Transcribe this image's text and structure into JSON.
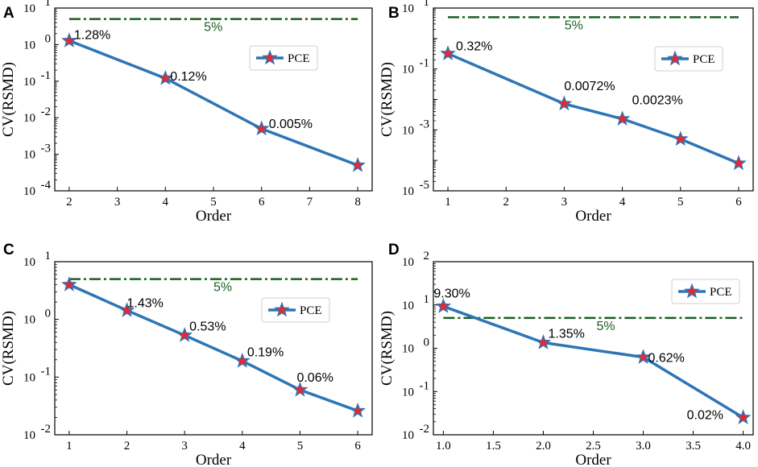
{
  "chart_data": [
    {
      "panel": "A",
      "type": "line",
      "xlabel": "Order",
      "ylabel": "CV(RSMD)",
      "yscale": "log",
      "xlim": [
        1.7,
        8.3
      ],
      "ylim_exp": [
        -4,
        1
      ],
      "xticks": [
        2,
        3,
        4,
        5,
        6,
        7,
        8
      ],
      "xtick_labels": [
        "2",
        "3",
        "4",
        "5",
        "6",
        "7",
        "8"
      ],
      "series": [
        {
          "name": "PCE",
          "x": [
            2,
            4,
            6,
            8
          ],
          "y": [
            1.28,
            0.12,
            0.005,
            0.0005
          ],
          "labels": [
            "1.28%",
            "0.12%",
            "0.005%",
            ""
          ]
        }
      ],
      "threshold": {
        "value": 5,
        "label": "5%"
      },
      "legend_position": "upper right"
    },
    {
      "panel": "B",
      "type": "line",
      "xlabel": "Order",
      "ylabel": "CV(RSMD)",
      "yscale": "log",
      "xlim": [
        0.75,
        6.25
      ],
      "ylim_exp": [
        -5,
        1
      ],
      "xticks": [
        1,
        2,
        3,
        4,
        5,
        6
      ],
      "xtick_labels": [
        "1",
        "2",
        "3",
        "4",
        "5",
        "6"
      ],
      "ytick_exps": [
        -5,
        -3,
        -1,
        1
      ],
      "series": [
        {
          "name": "PCE",
          "x": [
            1,
            3,
            4,
            5,
            6
          ],
          "y": [
            0.32,
            0.0072,
            0.0023,
            0.0005,
            8e-05
          ],
          "labels": [
            "0.32%",
            "0.0072%",
            "0.0023%",
            "",
            ""
          ]
        }
      ],
      "threshold": {
        "value": 5,
        "label": "5%"
      },
      "legend_position": "upper right"
    },
    {
      "panel": "C",
      "type": "line",
      "xlabel": "Order",
      "ylabel": "CV(RSMD)",
      "yscale": "log",
      "xlim": [
        0.75,
        6.25
      ],
      "ylim_exp": [
        -2,
        1
      ],
      "xticks": [
        1,
        2,
        3,
        4,
        5,
        6
      ],
      "xtick_labels": [
        "1",
        "2",
        "3",
        "4",
        "5",
        "6"
      ],
      "series": [
        {
          "name": "PCE",
          "x": [
            1,
            2,
            3,
            4,
            5,
            6
          ],
          "y": [
            4.0,
            1.43,
            0.53,
            0.19,
            0.06,
            0.026
          ],
          "labels": [
            "",
            "1.43%",
            "0.53%",
            "0.19%",
            "0.06%",
            ""
          ]
        }
      ],
      "threshold": {
        "value": 5,
        "label": "5%"
      },
      "legend_position": "upper right"
    },
    {
      "panel": "D",
      "type": "line",
      "xlabel": "Order",
      "ylabel": "CV(RSMD)",
      "yscale": "log",
      "xlim": [
        0.9,
        4.1
      ],
      "ylim_exp": [
        -2,
        2
      ],
      "xticks": [
        1.0,
        1.5,
        2.0,
        2.5,
        3.0,
        3.5,
        4.0
      ],
      "xtick_labels": [
        "1.0",
        "1.5",
        "2.0",
        "2.5",
        "3.0",
        "3.5",
        "4.0"
      ],
      "series": [
        {
          "name": "PCE",
          "x": [
            1.0,
            2.0,
            3.0,
            4.0
          ],
          "y": [
            9.3,
            1.35,
            0.62,
            0.025
          ],
          "labels": [
            "9.30%",
            "1.35%",
            "0.62%",
            "0.02%"
          ]
        }
      ],
      "threshold": {
        "value": 5,
        "label": "5%"
      },
      "legend_position": "upper right"
    }
  ],
  "colors": {
    "line": "#2e75b6",
    "marker": "#e8272e",
    "threshold": "#1b5e20"
  }
}
